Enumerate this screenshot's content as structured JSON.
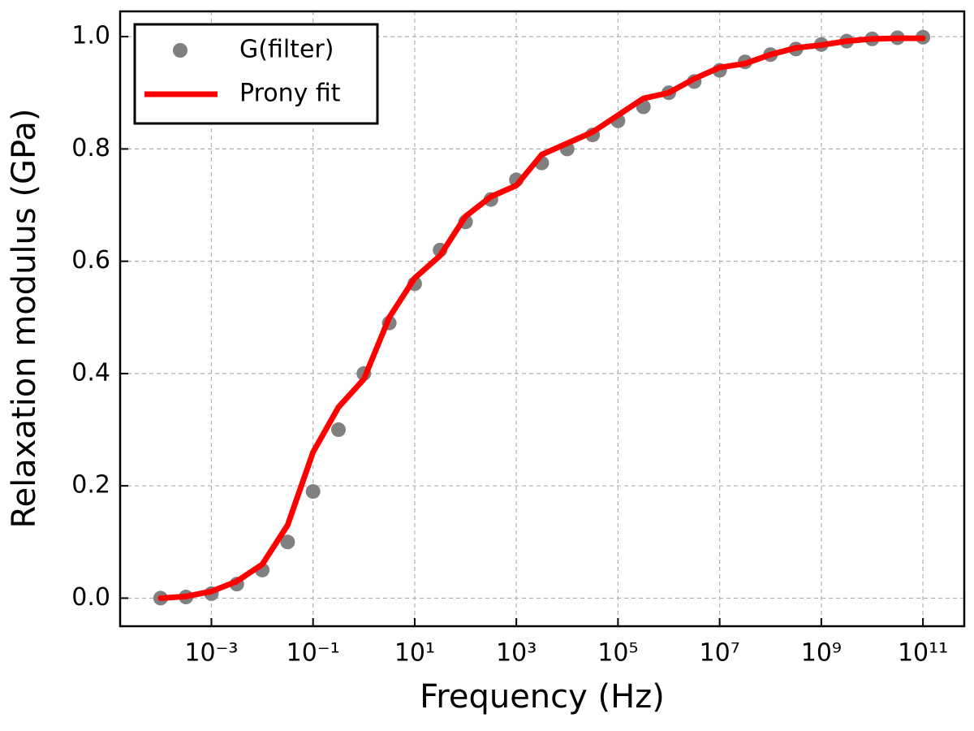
{
  "chart_data": {
    "type": "line",
    "xlabel": "Frequency (Hz)",
    "ylabel": "Relaxation modulus (GPa)",
    "xscale": "log",
    "xlim": [
      1.6e-05,
      650000000000.0
    ],
    "ylim": [
      -0.05,
      1.045
    ],
    "xticks": [
      {
        "value": 0.001,
        "label": "10⁻³"
      },
      {
        "value": 0.1,
        "label": "10⁻¹"
      },
      {
        "value": 10,
        "label": "10¹"
      },
      {
        "value": 1000,
        "label": "10³"
      },
      {
        "value": 100000,
        "label": "10⁵"
      },
      {
        "value": 10000000,
        "label": "10⁷"
      },
      {
        "value": 1000000000,
        "label": "10⁹"
      },
      {
        "value": 100000000000,
        "label": "10¹¹"
      }
    ],
    "yticks": [
      {
        "value": 0,
        "label": "0.0"
      },
      0.2,
      0.4,
      0.6,
      0.8,
      {
        "value": 1,
        "label": "1.0"
      }
    ],
    "grid": true,
    "legend": "upper left",
    "x": [
      0.0001,
      0.000316,
      0.001,
      0.00316,
      0.01,
      0.0316,
      0.1,
      0.316,
      1,
      3.16,
      10,
      31.6,
      100,
      316,
      1000,
      3160,
      10000.0,
      31600.0,
      100000.0,
      316000.0,
      1000000.0,
      3160000.0,
      10000000.0,
      31600000.0,
      100000000.0,
      316000000.0,
      1000000000.0,
      3160000000.0,
      10000000000.0,
      31600000000.0,
      100000000000.0
    ],
    "series": [
      {
        "name": "G(filter)",
        "color": "#808080",
        "mode": "markers",
        "values": [
          0.0,
          0.002,
          0.008,
          0.025,
          0.05,
          0.1,
          0.19,
          0.3,
          0.4,
          0.49,
          0.56,
          0.62,
          0.67,
          0.71,
          0.745,
          0.775,
          0.8,
          0.825,
          0.85,
          0.875,
          0.9,
          0.92,
          0.94,
          0.955,
          0.968,
          0.978,
          0.986,
          0.992,
          0.996,
          0.998,
          0.999
        ]
      },
      {
        "name": "Prony fit",
        "color": "#ff0000",
        "mode": "line",
        "values": [
          0.0,
          0.003,
          0.012,
          0.03,
          0.06,
          0.13,
          0.26,
          0.34,
          0.39,
          0.5,
          0.57,
          0.61,
          0.68,
          0.715,
          0.735,
          0.79,
          0.81,
          0.83,
          0.86,
          0.89,
          0.9,
          0.925,
          0.945,
          0.952,
          0.968,
          0.98,
          0.985,
          0.992,
          0.996,
          0.997,
          0.997
        ]
      }
    ]
  }
}
